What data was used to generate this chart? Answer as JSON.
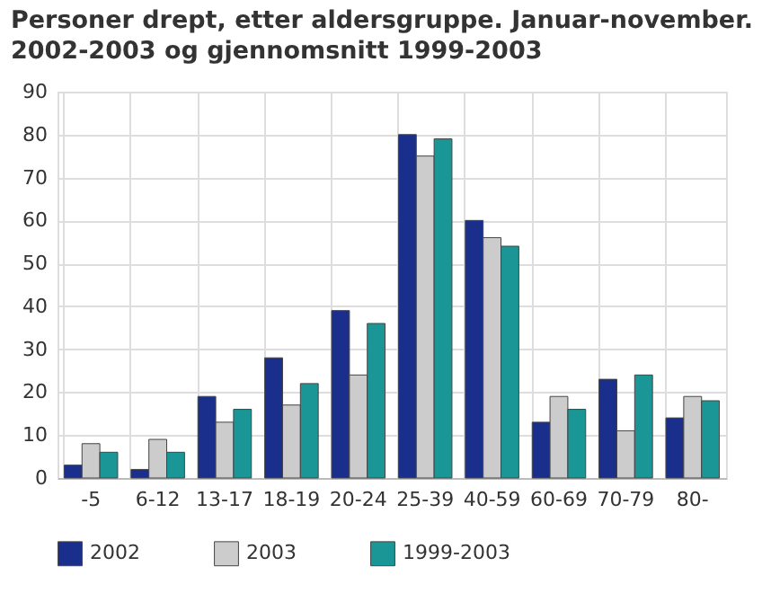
{
  "chart_data": {
    "type": "bar",
    "title": "Personer drept, etter aldersgruppe. Januar-november. 2002-2003 og gjennomsnitt 1999-2003",
    "categories": [
      "-5",
      "6-12",
      "13-17",
      "18-19",
      "20-24",
      "25-39",
      "40-59",
      "60-69",
      "70-79",
      "80-"
    ],
    "series": [
      {
        "name": "2002",
        "color": "#1a2f8c",
        "values": [
          3,
          2,
          19,
          28,
          39,
          80,
          60,
          13,
          23,
          14
        ]
      },
      {
        "name": "2003",
        "color": "#cccccc",
        "values": [
          8,
          9,
          13,
          17,
          24,
          75,
          56,
          19,
          11,
          19
        ]
      },
      {
        "name": "1999-2003",
        "color": "#1a9696",
        "values": [
          6,
          6,
          16,
          22,
          36,
          79,
          54,
          16,
          24,
          18
        ]
      }
    ],
    "ylim": [
      0,
      90
    ],
    "yticks": [
      0,
      10,
      20,
      30,
      40,
      50,
      60,
      70,
      80,
      90
    ],
    "grid": true,
    "legend": "bottom"
  }
}
